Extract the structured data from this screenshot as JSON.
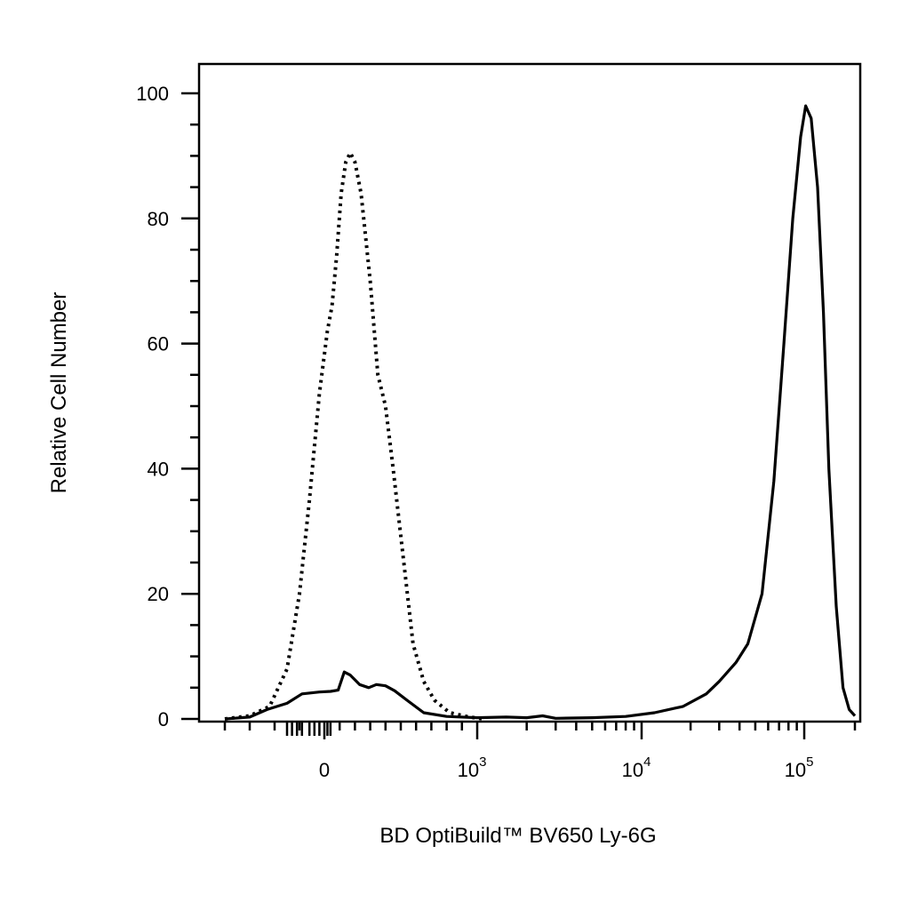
{
  "chart_data": {
    "type": "line",
    "title": "",
    "xlabel": "BD OptiBuild™ BV650 Ly-6G",
    "ylabel": "Relative Cell Number",
    "x_scale": "biexponential",
    "xlim": [
      -500,
      200000
    ],
    "ylim": [
      0,
      105
    ],
    "x_ticks": [
      {
        "value": 0,
        "base": "0",
        "exp": ""
      },
      {
        "value": 1000,
        "base": "10",
        "exp": "3"
      },
      {
        "value": 10000,
        "base": "10",
        "exp": "4"
      },
      {
        "value": 100000,
        "base": "10",
        "exp": "5"
      }
    ],
    "y_ticks": [
      "0",
      "20",
      "40",
      "60",
      "80",
      "100"
    ],
    "grid": false,
    "legend": "none",
    "series": [
      {
        "style": "dotted",
        "color": "#000000",
        "points": [
          [
            -400,
            0
          ],
          [
            -300,
            0.5
          ],
          [
            -220,
            2
          ],
          [
            -150,
            8
          ],
          [
            -100,
            20
          ],
          [
            -60,
            35
          ],
          [
            -20,
            52
          ],
          [
            20,
            62
          ],
          [
            50,
            66
          ],
          [
            80,
            74
          ],
          [
            110,
            84
          ],
          [
            140,
            89
          ],
          [
            170,
            90.5
          ],
          [
            200,
            89
          ],
          [
            240,
            84
          ],
          [
            300,
            70
          ],
          [
            350,
            55
          ],
          [
            400,
            50
          ],
          [
            450,
            40
          ],
          [
            520,
            25
          ],
          [
            580,
            12
          ],
          [
            650,
            6
          ],
          [
            720,
            3
          ],
          [
            820,
            1
          ],
          [
            950,
            0.3
          ],
          [
            1100,
            0
          ]
        ]
      },
      {
        "style": "solid",
        "color": "#000000",
        "points": [
          [
            -400,
            0
          ],
          [
            -300,
            0.3
          ],
          [
            -230,
            1.5
          ],
          [
            -150,
            2.5
          ],
          [
            -90,
            4
          ],
          [
            -20,
            4.3
          ],
          [
            40,
            4.4
          ],
          [
            90,
            4.6
          ],
          [
            130,
            7.5
          ],
          [
            170,
            7
          ],
          [
            230,
            5.5
          ],
          [
            290,
            5
          ],
          [
            340,
            5.5
          ],
          [
            400,
            5.3
          ],
          [
            460,
            4.5
          ],
          [
            540,
            3
          ],
          [
            650,
            1
          ],
          [
            800,
            0.4
          ],
          [
            1000,
            0.2
          ],
          [
            1500,
            0.3
          ],
          [
            2000,
            0.2
          ],
          [
            2500,
            0.5
          ],
          [
            3000,
            0.1
          ],
          [
            5000,
            0.2
          ],
          [
            8000,
            0.4
          ],
          [
            12000,
            1
          ],
          [
            18000,
            2
          ],
          [
            25000,
            4
          ],
          [
            30000,
            6
          ],
          [
            38000,
            9
          ],
          [
            45000,
            12
          ],
          [
            55000,
            20
          ],
          [
            65000,
            38
          ],
          [
            75000,
            60
          ],
          [
            85000,
            80
          ],
          [
            95000,
            93
          ],
          [
            102000,
            98
          ],
          [
            110000,
            96
          ],
          [
            120000,
            85
          ],
          [
            130000,
            65
          ],
          [
            140000,
            40
          ],
          [
            155000,
            18
          ],
          [
            170000,
            5
          ],
          [
            185000,
            1.5
          ],
          [
            200000,
            0.5
          ]
        ]
      }
    ]
  }
}
